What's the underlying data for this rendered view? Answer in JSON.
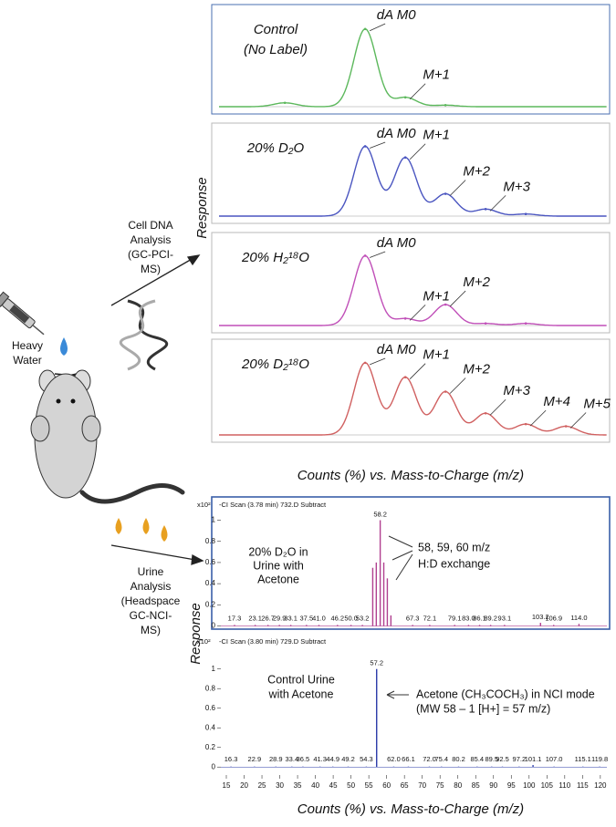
{
  "figure": {
    "heavy_water": [
      "Heavy",
      "Water"
    ],
    "cell_dna": [
      "Cell DNA",
      "Analysis",
      "(GC-PCI-",
      "MS)"
    ],
    "urine": [
      "Urine",
      "Analysis",
      "(Headspace",
      "GC-NCI-",
      "MS)"
    ],
    "top_y_title": "Response",
    "top_x_title": "Counts (%) vs. Mass-to-Charge (m/z)",
    "bottom_y_title": "Response",
    "bottom_x_title": "Counts (%) vs. Mass-to-Charge (m/z)"
  },
  "chart_data": [
    {
      "type": "line",
      "label_lines": [
        "Control",
        "(No Label)"
      ],
      "color": "#5cb85c",
      "frame_color": "#4a6fb0",
      "xlim": [
        -3.64,
        6.02
      ],
      "ylim": [
        0,
        1.15
      ],
      "x": [
        -2,
        0,
        1,
        2
      ],
      "values": [
        0.05,
        1.0,
        0.12,
        0.02
      ],
      "peak_labels": [
        null,
        "dA M0",
        "M+1",
        null
      ]
    },
    {
      "type": "line",
      "label_lines": [
        "20% D₂O"
      ],
      "color": "#4a55c0",
      "frame_color": "#b8b8b8",
      "xlim": [
        -3.64,
        6.02
      ],
      "ylim": [
        0,
        1.15
      ],
      "x": [
        0,
        1,
        2,
        3,
        4
      ],
      "values": [
        1.0,
        0.84,
        0.32,
        0.1,
        0.03
      ],
      "peak_labels": [
        "dA M0",
        "M+1",
        "M+2",
        "M+3",
        null
      ]
    },
    {
      "type": "line",
      "label_lines": [
        "20% H₂¹⁸O"
      ],
      "color": "#c04fb8",
      "frame_color": "#b8b8b8",
      "xlim": [
        -3.64,
        6.02
      ],
      "ylim": [
        0,
        1.15
      ],
      "x": [
        0,
        1,
        2,
        3,
        4
      ],
      "values": [
        1.0,
        0.1,
        0.3,
        0.03,
        0.03
      ],
      "peak_labels": [
        "dA M0",
        "M+1",
        "M+2",
        null,
        null
      ]
    },
    {
      "type": "line",
      "label_lines": [
        "20% D₂¹⁸O"
      ],
      "color": "#d06060",
      "frame_color": "#b8b8b8",
      "xlim": [
        -3.64,
        6.02
      ],
      "ylim": [
        0,
        1.15
      ],
      "x": [
        0,
        1,
        2,
        3,
        4,
        5
      ],
      "values": [
        1.0,
        0.8,
        0.6,
        0.3,
        0.15,
        0.12
      ],
      "peak_labels": [
        "dA M0",
        "M+1",
        "M+2",
        "M+3",
        "M+4",
        "M+5"
      ]
    },
    {
      "type": "stem",
      "header": "-CI Scan (3.78 min) 732.D Subtract",
      "scale_label": "x10²",
      "color": "#b04090",
      "frame_color": "#3a5fa8",
      "xlim": [
        10.9,
        122.6
      ],
      "ylim": [
        -0.03,
        1.22
      ],
      "yticks": [
        0,
        0.2,
        0.4,
        0.6,
        0.8,
        1
      ],
      "x": [
        17.3,
        23.1,
        26.7,
        29.9,
        33.1,
        37.5,
        41.0,
        46.2,
        50.0,
        53.2,
        56.1,
        57.1,
        58.2,
        59.2,
        60.2,
        61.2,
        67.3,
        72.1,
        79.1,
        83.0,
        86.1,
        89.2,
        93.1,
        103.2,
        106.9,
        114.0
      ],
      "values": [
        0.01,
        0.01,
        0.01,
        0.01,
        0.01,
        0.01,
        0.01,
        0.01,
        0.01,
        0.01,
        0.55,
        0.6,
        1.0,
        0.6,
        0.45,
        0.1,
        0.01,
        0.01,
        0.01,
        0.01,
        0.01,
        0.01,
        0.01,
        0.03,
        0.01,
        0.02
      ],
      "peak_labels": [
        "17.3",
        "23.1",
        "26.7",
        "29.9",
        "33.1",
        "37.5",
        "41.0",
        "46.2",
        "50.0",
        "53.2",
        null,
        null,
        "58.2",
        null,
        null,
        null,
        "67.3",
        "72.1",
        "79.1",
        "83.0",
        "86.1",
        "89.2",
        "93.1",
        "103.2",
        "106.9",
        "114.0"
      ],
      "annotations": [
        [
          "20% D₂O in",
          "Urine with",
          "Acetone"
        ],
        [
          "58, 59, 60 m/z",
          "H:D exchange"
        ]
      ]
    },
    {
      "type": "stem",
      "header": "-CI Scan (3.80 min) 729.D Subtract",
      "scale_label": "x10²",
      "color": "#2a3aa8",
      "frame_color": "none",
      "xlim": [
        10.9,
        122.6
      ],
      "ylim": [
        -0.1,
        1.36
      ],
      "yticks": [
        0,
        0.2,
        0.4,
        0.6,
        0.8,
        1
      ],
      "xticks": [
        15,
        20,
        25,
        30,
        35,
        40,
        45,
        50,
        55,
        60,
        65,
        70,
        75,
        80,
        85,
        90,
        95,
        100,
        105,
        110,
        115,
        120
      ],
      "x": [
        16.3,
        22.9,
        28.9,
        33.4,
        36.5,
        41.3,
        44.9,
        49.2,
        54.3,
        57.2,
        62.0,
        66.1,
        72.0,
        75.4,
        80.2,
        85.4,
        89.5,
        92.5,
        97.2,
        101.1,
        107.0,
        115.1,
        119.8
      ],
      "values": [
        0.005,
        0.005,
        0.005,
        0.005,
        0.005,
        0.005,
        0.005,
        0.005,
        0.005,
        1.0,
        0.005,
        0.005,
        0.005,
        0.005,
        0.005,
        0.005,
        0.005,
        0.005,
        0.005,
        0.02,
        0.005,
        0.005,
        0.005
      ],
      "peak_labels": [
        "16.3",
        "22.9",
        "28.9",
        "33.4",
        "36.5",
        "41.3",
        "44.9",
        "49.2",
        "54.3",
        "57.2",
        "62.0",
        "66.1",
        "72.0",
        "75.4",
        "80.2",
        "85.4",
        "89.5",
        "92.5",
        "97.2",
        "101.1",
        "107.0",
        "115.1",
        "119.8"
      ],
      "annotations": [
        [
          "Control Urine",
          "with Acetone"
        ],
        [
          "Acetone (CH₃COCH₃) in NCI mode",
          "(MW 58 – 1 [H+] = 57 m/z)"
        ]
      ]
    }
  ]
}
